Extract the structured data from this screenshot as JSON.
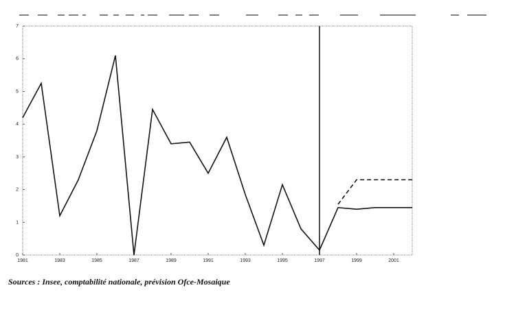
{
  "chart_data": {
    "type": "line",
    "source": "Sources : Insee, comptabilité nationale, prévision Ofce-Mosaique",
    "x": [
      1981,
      1982,
      1983,
      1984,
      1985,
      1986,
      1987,
      1988,
      1989,
      1990,
      1991,
      1992,
      1993,
      1994,
      1995,
      1996,
      1997,
      1998,
      1999,
      2000,
      2001,
      2002
    ],
    "series": [
      {
        "color": "#111111",
        "dash": false,
        "values": [
          4.2,
          5.25,
          1.2,
          2.3,
          3.8,
          6.1,
          0,
          4.45,
          3.4,
          3.45,
          2.5,
          3.6,
          1.85,
          0.3,
          2.15,
          0.8,
          0.15,
          1.45,
          1.4,
          1.45,
          1.45,
          1.45
        ]
      },
      {
        "color": "#111111",
        "dash": true,
        "values": [
          null,
          null,
          null,
          null,
          null,
          null,
          null,
          null,
          null,
          null,
          null,
          null,
          null,
          null,
          null,
          null,
          null,
          1.55,
          2.3,
          2.3,
          2.3,
          2.3
        ]
      }
    ],
    "vline": 1997,
    "xlim": [
      1981,
      2002
    ],
    "xticks": [
      1981,
      1983,
      1985,
      1987,
      1989,
      1991,
      1993,
      1995,
      1997,
      1999,
      2001
    ],
    "ylim": [
      0,
      7
    ],
    "yticks": [
      0,
      1,
      2,
      3,
      4,
      5,
      6,
      7
    ],
    "grid": false
  }
}
